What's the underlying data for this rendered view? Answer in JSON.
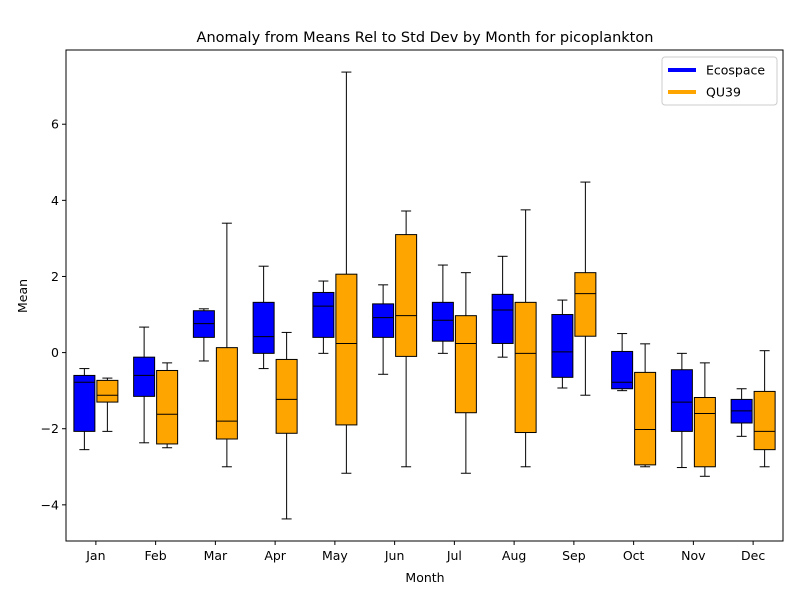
{
  "chart_data": {
    "type": "box",
    "title": "Anomaly from Means Rel to Std Dev by Month for picoplankton",
    "xlabel": "Month",
    "ylabel": "Mean",
    "ylim": [
      -4.95,
      7.95
    ],
    "yticks": [
      -4,
      -2,
      0,
      2,
      4,
      6
    ],
    "categories": [
      "Jan",
      "Feb",
      "Mar",
      "Apr",
      "May",
      "Jun",
      "Jul",
      "Aug",
      "Sep",
      "Oct",
      "Nov",
      "Dec"
    ],
    "legend_position": "top-right",
    "series": [
      {
        "name": "Ecospace",
        "color": "#0000ff",
        "boxes": [
          {
            "whislo": -2.55,
            "q1": -2.07,
            "med": -0.78,
            "q3": -0.6,
            "whishi": -0.42
          },
          {
            "whislo": -2.37,
            "q1": -1.15,
            "med": -0.6,
            "q3": -0.12,
            "whishi": 0.67
          },
          {
            "whislo": -0.22,
            "q1": 0.4,
            "med": 0.76,
            "q3": 1.1,
            "whishi": 1.15
          },
          {
            "whislo": -0.42,
            "q1": -0.02,
            "med": 0.42,
            "q3": 1.32,
            "whishi": 2.27
          },
          {
            "whislo": -0.02,
            "q1": 0.4,
            "med": 1.22,
            "q3": 1.58,
            "whishi": 1.88
          },
          {
            "whislo": -0.57,
            "q1": 0.4,
            "med": 0.92,
            "q3": 1.28,
            "whishi": 1.78
          },
          {
            "whislo": -0.02,
            "q1": 0.3,
            "med": 0.85,
            "q3": 1.32,
            "whishi": 2.3
          },
          {
            "whislo": -0.12,
            "q1": 0.24,
            "med": 1.12,
            "q3": 1.53,
            "whishi": 2.53
          },
          {
            "whislo": -0.93,
            "q1": -0.65,
            "med": 0.02,
            "q3": 1.0,
            "whishi": 1.38
          },
          {
            "whislo": -1.0,
            "q1": -0.95,
            "med": -0.78,
            "q3": 0.03,
            "whishi": 0.5
          },
          {
            "whislo": -3.02,
            "q1": -2.07,
            "med": -1.3,
            "q3": -0.45,
            "whishi": -0.02
          },
          {
            "whislo": -2.2,
            "q1": -1.85,
            "med": -1.53,
            "q3": -1.23,
            "whishi": -0.95
          }
        ]
      },
      {
        "name": "QU39",
        "color": "#ffa500",
        "boxes": [
          {
            "whislo": -2.07,
            "q1": -1.3,
            "med": -1.12,
            "q3": -0.73,
            "whishi": -0.67
          },
          {
            "whislo": -2.5,
            "q1": -2.4,
            "med": -1.62,
            "q3": -0.47,
            "whishi": -0.27
          },
          {
            "whislo": -3.0,
            "q1": -2.27,
            "med": -1.8,
            "q3": 0.13,
            "whishi": 3.4
          },
          {
            "whislo": -4.37,
            "q1": -2.12,
            "med": -1.23,
            "q3": -0.18,
            "whishi": 0.53
          },
          {
            "whislo": -3.17,
            "q1": -1.9,
            "med": 0.24,
            "q3": 2.06,
            "whishi": 7.37
          },
          {
            "whislo": -3.0,
            "q1": -0.1,
            "med": 0.97,
            "q3": 3.1,
            "whishi": 3.72
          },
          {
            "whislo": -3.17,
            "q1": -1.58,
            "med": 0.24,
            "q3": 0.97,
            "whishi": 2.1
          },
          {
            "whislo": -3.0,
            "q1": -2.1,
            "med": -0.02,
            "q3": 1.32,
            "whishi": 3.75
          },
          {
            "whislo": -1.12,
            "q1": 0.43,
            "med": 1.55,
            "q3": 2.1,
            "whishi": 4.48
          },
          {
            "whislo": -3.0,
            "q1": -2.95,
            "med": -2.02,
            "q3": -0.52,
            "whishi": 0.23
          },
          {
            "whislo": -3.25,
            "q1": -3.0,
            "med": -1.6,
            "q3": -1.18,
            "whishi": -0.27
          },
          {
            "whislo": -3.0,
            "q1": -2.55,
            "med": -2.07,
            "q3": -1.02,
            "whishi": 0.05
          }
        ]
      }
    ]
  }
}
